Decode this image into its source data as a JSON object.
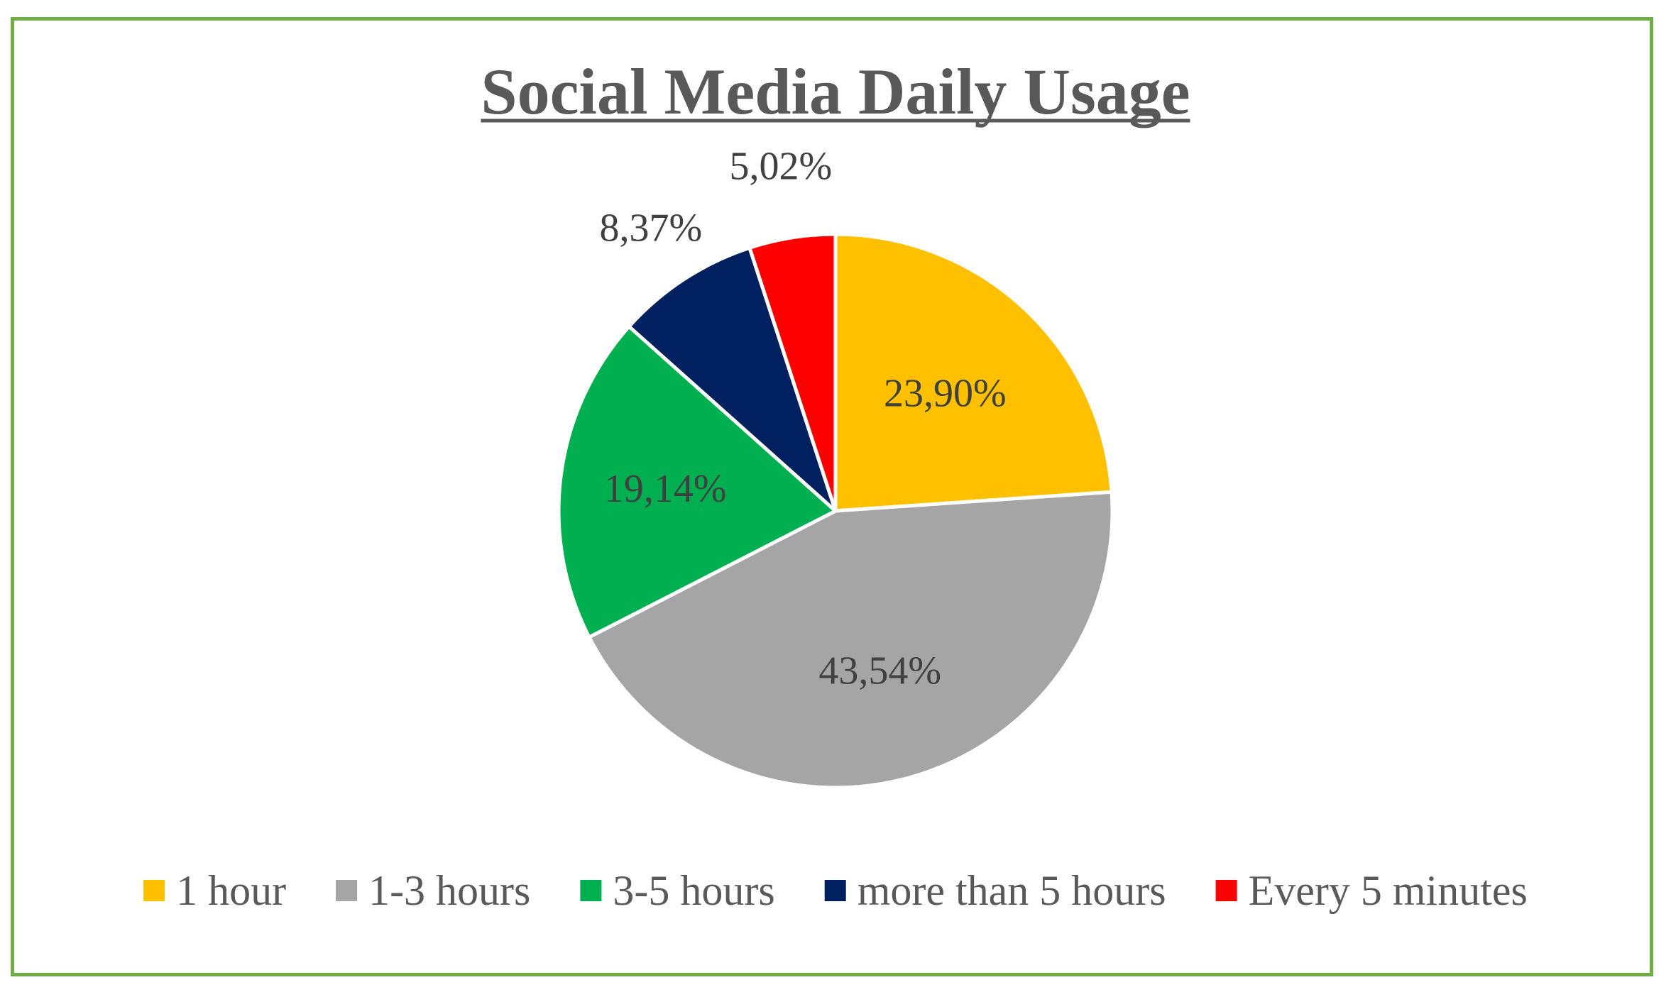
{
  "chart_data": {
    "type": "pie",
    "title": "Social Media Daily Usage",
    "categories": [
      "1 hour",
      "1-3 hours",
      "3-5 hours",
      "more than 5 hours",
      "Every 5 minutes"
    ],
    "values": [
      23.9,
      43.54,
      19.14,
      8.37,
      5.02
    ],
    "labels": [
      "23,90%",
      "43,54%",
      "19,14%",
      "8,37%",
      "5,02%"
    ],
    "colors": [
      "#ffc000",
      "#a5a5a5",
      "#00b050",
      "#002060",
      "#ff0000"
    ],
    "legend_position": "bottom",
    "start_angle": "12 o'clock",
    "direction": "clockwise"
  },
  "frame": {
    "border_color": "#70ad47"
  }
}
